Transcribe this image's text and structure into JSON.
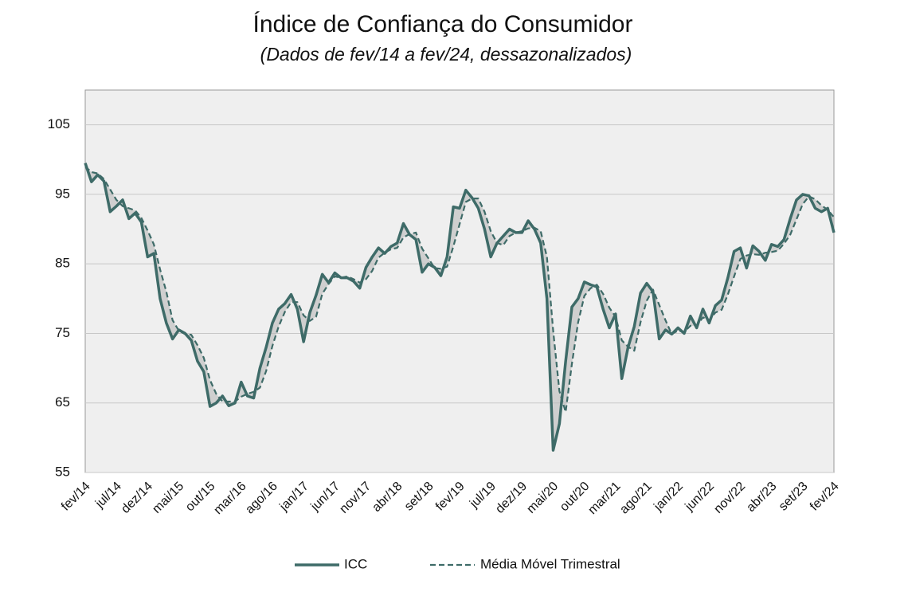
{
  "chart_data": {
    "type": "line",
    "title": "Índice de Confiança do Consumidor",
    "subtitle": "(Dados de fev/14 a fev/24, dessazonalizados)",
    "categories": [
      "fev/14",
      null,
      null,
      null,
      null,
      "jul/14",
      null,
      null,
      null,
      null,
      "dez/14",
      null,
      null,
      null,
      null,
      "mai/15",
      null,
      null,
      null,
      null,
      "out/15",
      null,
      null,
      null,
      null,
      "mar/16",
      null,
      null,
      null,
      null,
      "ago/16",
      null,
      null,
      null,
      null,
      "jan/17",
      null,
      null,
      null,
      null,
      "jun/17",
      null,
      null,
      null,
      null,
      "nov/17",
      null,
      null,
      null,
      null,
      "abr/18",
      null,
      null,
      null,
      null,
      "set/18",
      null,
      null,
      null,
      null,
      "fev/19",
      null,
      null,
      null,
      null,
      "jul/19",
      null,
      null,
      null,
      null,
      "dez/19",
      null,
      null,
      null,
      null,
      "mai/20",
      null,
      null,
      null,
      null,
      "out/20",
      null,
      null,
      null,
      null,
      "mar/21",
      null,
      null,
      null,
      null,
      "ago/21",
      null,
      null,
      null,
      null,
      "jan/22",
      null,
      null,
      null,
      null,
      "jun/22",
      null,
      null,
      null,
      null,
      "nov/22",
      null,
      null,
      null,
      null,
      "abr/23",
      null,
      null,
      null,
      null,
      "set/23",
      null,
      null,
      null,
      null,
      "fev/24"
    ],
    "series": [
      {
        "name": "ICC",
        "color": "#3e6b68",
        "dash": false,
        "values": [
          99.5,
          96.8,
          97.8,
          96.9,
          92.5,
          93.3,
          94.2,
          91.5,
          92.3,
          91.0,
          86.0,
          86.5,
          80.0,
          76.5,
          74.2,
          75.5,
          75.0,
          74.0,
          71.0,
          69.5,
          64.5,
          65.0,
          66.0,
          64.6,
          65.0,
          68.0,
          66.0,
          65.7,
          70.0,
          73.0,
          76.5,
          78.5,
          79.3,
          80.6,
          78.5,
          73.8,
          78.0,
          80.5,
          83.5,
          82.3,
          83.7,
          83.0,
          83.0,
          82.5,
          81.5,
          84.5,
          86.0,
          87.3,
          86.5,
          87.5,
          88.0,
          90.8,
          89.2,
          88.5,
          83.8,
          85.0,
          84.5,
          83.3,
          86.0,
          93.2,
          93.0,
          95.6,
          94.5,
          93.0,
          90.0,
          86.0,
          88.0,
          89.0,
          90.0,
          89.5,
          89.5,
          91.2,
          90.0,
          88.0,
          80.0,
          58.2,
          62.0,
          71.0,
          78.8,
          80.0,
          82.4,
          82.0,
          81.7,
          78.5,
          75.8,
          77.8,
          68.5,
          73.0,
          76.0,
          80.8,
          82.2,
          81.0,
          74.2,
          75.5,
          74.9,
          75.8,
          75.0,
          77.5,
          75.8,
          78.5,
          76.5,
          79.0,
          79.8,
          83.0,
          86.8,
          87.3,
          84.4,
          87.6,
          86.8,
          85.5,
          87.8,
          87.5,
          88.5,
          91.5,
          94.2,
          95.0,
          94.8,
          93.0,
          92.5,
          93.0,
          89.5
        ]
      },
      {
        "name": "Média Móvel Trimestral",
        "color": "#3e6b68",
        "dash": true,
        "values": [
          99.0,
          98.2,
          98.0,
          97.2,
          95.7,
          94.2,
          93.3,
          93.0,
          92.7,
          91.6,
          89.8,
          87.8,
          84.2,
          81.0,
          76.9,
          75.4,
          74.9,
          74.8,
          73.3,
          71.5,
          68.3,
          66.3,
          65.2,
          65.2,
          65.2,
          65.9,
          66.3,
          66.6,
          67.2,
          69.6,
          73.2,
          76.0,
          78.1,
          79.5,
          79.5,
          77.6,
          76.8,
          77.4,
          80.7,
          82.1,
          83.2,
          83.0,
          83.2,
          82.8,
          82.3,
          82.8,
          84.0,
          85.9,
          86.6,
          87.1,
          87.3,
          88.8,
          89.3,
          89.5,
          87.2,
          85.8,
          84.4,
          84.3,
          84.6,
          87.5,
          90.7,
          93.9,
          94.4,
          94.4,
          92.5,
          89.7,
          88.0,
          87.7,
          89.0,
          89.5,
          89.7,
          90.1,
          90.2,
          89.7,
          86.0,
          75.4,
          66.7,
          63.7,
          70.6,
          76.6,
          80.4,
          81.5,
          82.0,
          80.7,
          78.7,
          77.4,
          74.0,
          73.1,
          72.5,
          76.6,
          79.7,
          81.3,
          79.1,
          76.9,
          74.9,
          75.4,
          75.2,
          76.1,
          76.1,
          77.3,
          76.9,
          78.0,
          78.4,
          80.6,
          83.2,
          85.7,
          86.2,
          86.4,
          86.3,
          86.6,
          86.7,
          86.9,
          87.9,
          89.2,
          91.4,
          93.6,
          94.7,
          94.3,
          93.4,
          92.8,
          91.7
        ]
      }
    ],
    "ylim": [
      55,
      110
    ],
    "yticks": [
      55,
      65,
      75,
      85,
      95,
      105
    ],
    "grid": true,
    "legend": "bottom"
  }
}
